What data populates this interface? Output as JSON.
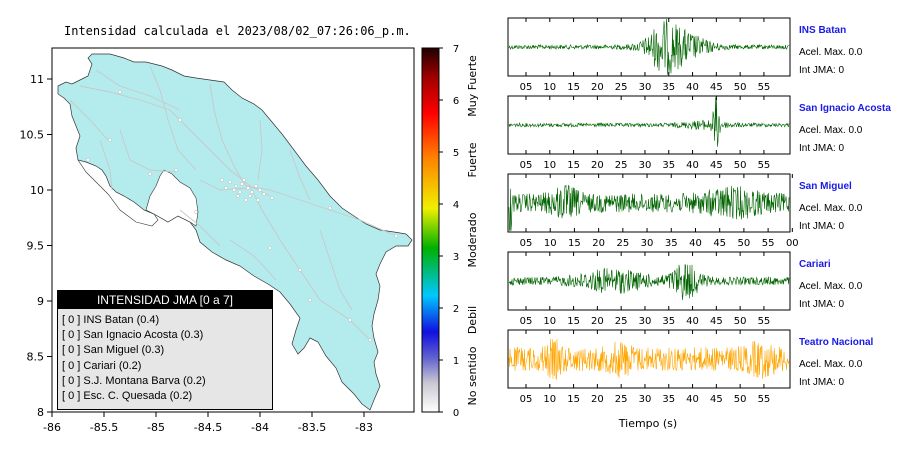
{
  "map": {
    "title": "Intensidad calculada el 2023/08/02_07:26:06_p.m.",
    "lon_ticks": [
      "-86",
      "-85.5",
      "-85",
      "-84.5",
      "-84",
      "-83.5",
      "-83"
    ],
    "lat_ticks": [
      "11",
      "10.5",
      "10",
      "9.5",
      "9",
      "8.5",
      "8"
    ],
    "land_color": "#b4eced",
    "road_color": "#c8c8c8"
  },
  "colorbar": {
    "ticks": [
      "0",
      "1",
      "2",
      "3",
      "4",
      "5",
      "6",
      "7"
    ],
    "labels": [
      "No sentido",
      "Debil",
      "Moderado",
      "Fuerte",
      "Muy Fuerte"
    ]
  },
  "legend": {
    "title": "INTENSIDAD JMA [0 a 7]",
    "items": [
      "[ 0 ]  INS Batan (0.4)",
      "[ 0 ]  San Ignacio Acosta (0.3)",
      "[ 0 ]  San Miguel (0.3)",
      "[ 0 ]  Cariari (0.2)",
      "[ 0 ]  S.J. Montana Barva (0.2)",
      "[ 0 ]  Esc. C. Quesada (0.2)"
    ]
  },
  "waveforms": {
    "xlabel": "Tiempo (s)",
    "stations": [
      {
        "name": "INS Batan",
        "accel": "Acel. Max. 0.0",
        "jma": "Int JMA: 0",
        "color": "#006400",
        "ticks": [
          "05",
          "10",
          "15",
          "20",
          "25",
          "30",
          "35",
          "40",
          "45",
          "50",
          "55"
        ]
      },
      {
        "name": "San Ignacio Acosta",
        "accel": "Acel. Max. 0.0",
        "jma": "Int JMA: 0",
        "color": "#006400",
        "ticks": [
          "05",
          "10",
          "15",
          "20",
          "25",
          "30",
          "35",
          "40",
          "45",
          "50",
          "55"
        ]
      },
      {
        "name": "San Miguel",
        "accel": "Acel. Max. 0.0",
        "jma": "Int JMA: 0",
        "color": "#006400",
        "ticks": [
          "05",
          "10",
          "15",
          "20",
          "25",
          "30",
          "35",
          "40",
          "45",
          "50",
          "55",
          "00"
        ]
      },
      {
        "name": "Cariari",
        "accel": "Acel. Max. 0.0",
        "jma": "Int JMA: 0",
        "color": "#006400",
        "ticks": [
          "05",
          "10",
          "15",
          "20",
          "25",
          "30",
          "35",
          "40",
          "45",
          "50",
          "55"
        ]
      },
      {
        "name": "Teatro Nacional",
        "accel": "Acel. Max. 0.0",
        "jma": "Int JMA: 0",
        "color": "#ffa500",
        "ticks": [
          "05",
          "10",
          "15",
          "20",
          "25",
          "30",
          "35",
          "40",
          "45",
          "50",
          "55"
        ]
      }
    ]
  }
}
